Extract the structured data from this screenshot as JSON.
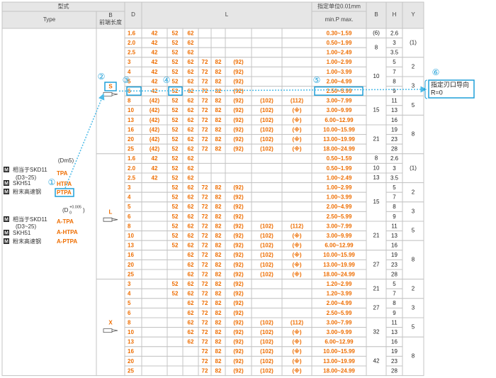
{
  "header": {
    "model": "型式",
    "type": "Type",
    "b": "B",
    "b_sub": "前端长度",
    "d": "D",
    "l": "L",
    "unit": "指定单位0.01mm",
    "p": "min.P max.",
    "b2": "B",
    "h": "H",
    "y": "Y"
  },
  "type_panel": {
    "tol1": "(Dm5)",
    "mark": "M",
    "grade1": "相当于SKD11",
    "range": "(D3~25)",
    "grade2": "SKH51",
    "grade3": "粉末高速钢",
    "codes1": [
      "TPA",
      "HTPA",
      "PTPA"
    ],
    "tol2_open": "(D",
    "tol2_upper": "+0.005",
    "tol2_lower": "0",
    "tol2_close": ")",
    "codes2": [
      "A-TPA",
      "A-HTPA",
      "A-PTPA"
    ]
  },
  "annotations": {
    "markers": [
      "①",
      "②",
      "③",
      "④",
      "⑤",
      "⑥"
    ],
    "note": [
      "指定刃口导向",
      "R=0"
    ]
  },
  "groups": [
    {
      "label": "S",
      "rows": [
        {
          "d": "1.6",
          "l": [
            "42",
            "52",
            "62",
            null,
            null,
            null,
            null,
            null
          ],
          "p": "0.30~1.59",
          "b": "(6)",
          "h": "2.6",
          "y": "(1)"
        },
        {
          "d": "2.0",
          "l": [
            "42",
            "52",
            "62",
            null,
            null,
            null,
            null,
            null
          ],
          "p": "0.50~1.99",
          "b": "8",
          "h": "3"
        },
        {
          "d": "2.5",
          "l": [
            "42",
            "52",
            "62",
            null,
            null,
            null,
            null,
            null
          ],
          "p": "1.00~2.49",
          "h": "3.5"
        },
        {
          "d": "3",
          "l": [
            "42",
            "52",
            "62",
            "72",
            "82",
            "(92)",
            null,
            null
          ],
          "p": "1.00~2.99",
          "b": "10",
          "h": "5",
          "y": "2"
        },
        {
          "d": "4",
          "l": [
            "42",
            "52",
            "62",
            "72",
            "82",
            "(92)",
            null,
            null
          ],
          "p": "1.00~3.99",
          "h": "7"
        },
        {
          "d": "5",
          "l": [
            "42",
            "52",
            "62",
            "72",
            "82",
            "(92)",
            null,
            null
          ],
          "p": "2.00~4.99",
          "h": "8",
          "y": "3"
        },
        {
          "d": "6",
          "l": [
            "42",
            "52",
            "62",
            "72",
            "82",
            "(92)",
            null,
            null
          ],
          "p": "2.50~5.99",
          "h": "9"
        },
        {
          "d": "8",
          "l": [
            "(42)",
            "52",
            "62",
            "72",
            "82",
            "(92)",
            "(102)",
            "(112)"
          ],
          "p": "3.00~7.99",
          "b": "15",
          "h": "11",
          "y": "5"
        },
        {
          "d": "10",
          "l": [
            "(42)",
            "52",
            "62",
            "72",
            "82",
            "(92)",
            "(102)",
            "(※)"
          ],
          "p": "3.00~9.99",
          "h": "13"
        },
        {
          "d": "13",
          "l": [
            "(42)",
            "52",
            "62",
            "72",
            "82",
            "(92)",
            "(102)",
            "(※)"
          ],
          "p": "6.00~12.99",
          "h": "16",
          "y": "8"
        },
        {
          "d": "16",
          "l": [
            "(42)",
            "52",
            "62",
            "72",
            "82",
            "(92)",
            "(102)",
            "(※)"
          ],
          "p": "10.00~15.99",
          "b": "21",
          "h": "19"
        },
        {
          "d": "20",
          "l": [
            "(42)",
            "52",
            "62",
            "72",
            "82",
            "(92)",
            "(102)",
            "(※)"
          ],
          "p": "13.00~19.99",
          "h": "23"
        },
        {
          "d": "25",
          "l": [
            "(42)",
            "52",
            "62",
            "72",
            "82",
            "(92)",
            "(102)",
            "(※)"
          ],
          "p": "18.00~24.99",
          "h": "28"
        }
      ]
    },
    {
      "label": "L",
      "rows": [
        {
          "d": "1.6",
          "l": [
            "42",
            "52",
            "62",
            null,
            null,
            null,
            null,
            null
          ],
          "p": "0.50~1.59",
          "b": "8",
          "h": "2.6",
          "y": "(1)"
        },
        {
          "d": "2.0",
          "l": [
            "42",
            "52",
            "62",
            null,
            null,
            null,
            null,
            null
          ],
          "p": "0.50~1.99",
          "b": "10",
          "h": "3"
        },
        {
          "d": "2.5",
          "l": [
            "42",
            "52",
            "62",
            null,
            null,
            null,
            null,
            null
          ],
          "p": "1.00~2.49",
          "b": "13",
          "h": "3.5"
        },
        {
          "d": "3",
          "l": [
            null,
            "52",
            "62",
            "72",
            "82",
            "(92)",
            null,
            null
          ],
          "p": "1.00~2.99",
          "b": "15",
          "h": "5",
          "y": "2"
        },
        {
          "d": "4",
          "l": [
            null,
            "52",
            "62",
            "72",
            "82",
            "(92)",
            null,
            null
          ],
          "p": "1.00~3.99",
          "h": "7"
        },
        {
          "d": "5",
          "l": [
            null,
            "52",
            "62",
            "72",
            "82",
            "(92)",
            null,
            null
          ],
          "p": "2.00~4.99",
          "h": "8",
          "y": "3"
        },
        {
          "d": "6",
          "l": [
            null,
            "52",
            "62",
            "72",
            "82",
            "(92)",
            null,
            null
          ],
          "p": "2.50~5.99",
          "h": "9"
        },
        {
          "d": "8",
          "l": [
            null,
            "52",
            "62",
            "72",
            "82",
            "(92)",
            "(102)",
            "(112)"
          ],
          "p": "3.00~7.99",
          "b": "21",
          "h": "11",
          "y": "5"
        },
        {
          "d": "10",
          "l": [
            null,
            "52",
            "62",
            "72",
            "82",
            "(92)",
            "(102)",
            "(※)"
          ],
          "p": "3.00~9.99",
          "h": "13"
        },
        {
          "d": "13",
          "l": [
            null,
            "52",
            "62",
            "72",
            "82",
            "(92)",
            "(102)",
            "(※)"
          ],
          "p": "6.00~12.99",
          "h": "16",
          "y": "8"
        },
        {
          "d": "16",
          "l": [
            null,
            null,
            "62",
            "72",
            "82",
            "(92)",
            "(102)",
            "(※)"
          ],
          "p": "10.00~15.99",
          "b": "27",
          "h": "19"
        },
        {
          "d": "20",
          "l": [
            null,
            null,
            "62",
            "72",
            "82",
            "(92)",
            "(102)",
            "(※)"
          ],
          "p": "13.00~19.99",
          "h": "23"
        },
        {
          "d": "25",
          "l": [
            null,
            null,
            "62",
            "72",
            "82",
            "(92)",
            "(102)",
            "(※)"
          ],
          "p": "18.00~24.99",
          "h": "28"
        }
      ]
    },
    {
      "label": "X",
      "rows": [
        {
          "d": "3",
          "l": [
            null,
            "52",
            "62",
            "72",
            "82",
            "(92)",
            null,
            null
          ],
          "p": "1.20~2.99",
          "b": "21",
          "h": "5",
          "y": "2"
        },
        {
          "d": "4",
          "l": [
            null,
            "52",
            "62",
            "72",
            "82",
            "(92)",
            null,
            null
          ],
          "p": "1.20~3.99",
          "h": "7"
        },
        {
          "d": "5",
          "l": [
            null,
            null,
            "62",
            "72",
            "82",
            "(92)",
            null,
            null
          ],
          "p": "2.00~4.99",
          "b": "27",
          "h": "8",
          "y": "3"
        },
        {
          "d": "6",
          "l": [
            null,
            null,
            "62",
            "72",
            "82",
            "(92)",
            null,
            null
          ],
          "p": "2.50~5.99",
          "h": "9"
        },
        {
          "d": "8",
          "l": [
            null,
            null,
            "62",
            "72",
            "82",
            "(92)",
            "(102)",
            "(112)"
          ],
          "p": "3.00~7.99",
          "b": "32",
          "h": "11",
          "y": "5"
        },
        {
          "d": "10",
          "l": [
            null,
            null,
            "62",
            "72",
            "82",
            "(92)",
            "(102)",
            "(※)"
          ],
          "p": "3.00~9.99",
          "h": "13"
        },
        {
          "d": "13",
          "l": [
            null,
            null,
            "62",
            "72",
            "82",
            "(92)",
            "(102)",
            "(※)"
          ],
          "p": "6.00~12.99",
          "h": "16",
          "y": "8"
        },
        {
          "d": "16",
          "l": [
            null,
            null,
            null,
            "72",
            "82",
            "(92)",
            "(102)",
            "(※)"
          ],
          "p": "10.00~15.99",
          "b": "42",
          "h": "19"
        },
        {
          "d": "20",
          "l": [
            null,
            null,
            null,
            "72",
            "82",
            "(92)",
            "(102)",
            "(※)"
          ],
          "p": "13.00~19.99",
          "h": "23"
        },
        {
          "d": "25",
          "l": [
            null,
            null,
            null,
            "72",
            "82",
            "(92)",
            "(102)",
            "(※)"
          ],
          "p": "18.00~24.99",
          "h": "28"
        }
      ]
    }
  ]
}
